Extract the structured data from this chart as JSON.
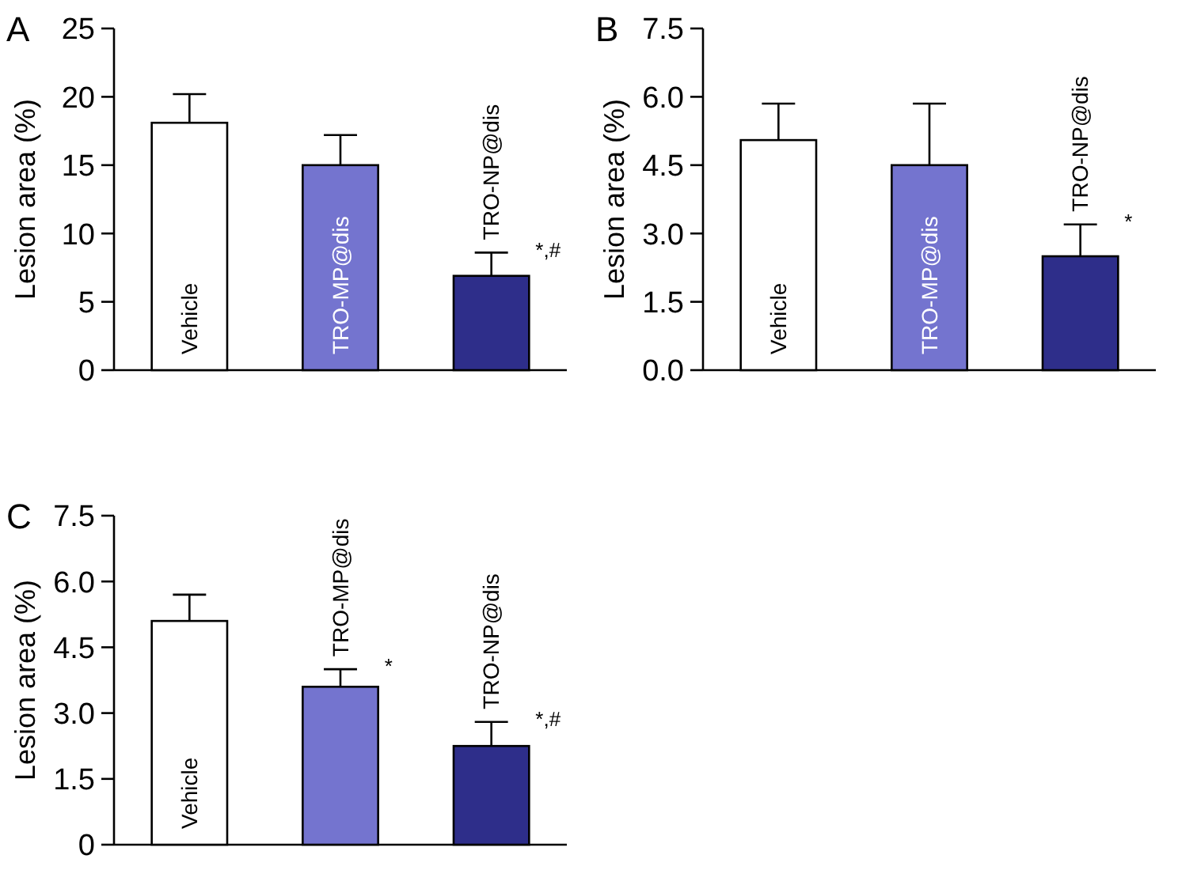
{
  "chart_data": [
    {
      "type": "bar",
      "title": "A",
      "ylabel": "Lesion area (%)",
      "categories": [
        "Vehicle",
        "TRO-MP@dis",
        "TRO-NP@dis"
      ],
      "values": [
        18.1,
        15.0,
        6.9
      ],
      "colors": [
        "#ffffff",
        "#7474cf",
        "#2e2e8a"
      ],
      "errors": [
        [
          18.1,
          20.2
        ],
        [
          15.0,
          17.2
        ],
        [
          6.9,
          8.6
        ]
      ],
      "ylim": [
        0,
        25
      ],
      "yticks": [
        0,
        5,
        10,
        15,
        20,
        25
      ],
      "annotations": [
        {
          "text": "*,#",
          "x": "TRO-NP@dis",
          "y": 8.6
        }
      ]
    },
    {
      "type": "bar",
      "title": "B",
      "ylabel": "Lesion area (%)",
      "categories": [
        "Vehicle",
        "TRO-MP@dis",
        "TRO-NP@dis"
      ],
      "values": [
        5.05,
        4.5,
        2.5
      ],
      "colors": [
        "#ffffff",
        "#7474cf",
        "#2e2e8a"
      ],
      "errors": [
        [
          5.05,
          5.85
        ],
        [
          4.5,
          5.85
        ],
        [
          2.5,
          3.2
        ]
      ],
      "ylim": [
        0,
        7.5
      ],
      "yticks": [
        {
          "value": 0,
          "label": "0.0"
        },
        1.5,
        {
          "value": 3,
          "label": "3.0"
        },
        4.5,
        {
          "value": 6,
          "label": "6.0"
        },
        7.5
      ],
      "annotations": [
        {
          "text": "*",
          "x": "TRO-NP@dis",
          "y": 3.2
        }
      ]
    },
    {
      "type": "bar",
      "title": "C",
      "ylabel": "Lesion area (%)",
      "categories": [
        "Vehicle",
        "TRO-MP@dis",
        "TRO-NP@dis"
      ],
      "values": [
        5.1,
        3.6,
        2.25
      ],
      "colors": [
        "#ffffff",
        "#7474cf",
        "#2e2e8a"
      ],
      "errors": [
        [
          5.1,
          5.7
        ],
        [
          3.6,
          4.0
        ],
        [
          2.25,
          2.8
        ]
      ],
      "ylim": [
        0,
        7.5
      ],
      "yticks": [
        0,
        1.5,
        {
          "value": 3,
          "label": "3.0"
        },
        4.5,
        {
          "value": 6,
          "label": "6.0"
        },
        7.5
      ],
      "annotations": [
        {
          "text": "*",
          "x": "TRO-MP@dis",
          "y": 4.0
        },
        {
          "text": "*,#",
          "x": "TRO-NP@dis",
          "y": 2.8
        }
      ]
    }
  ]
}
